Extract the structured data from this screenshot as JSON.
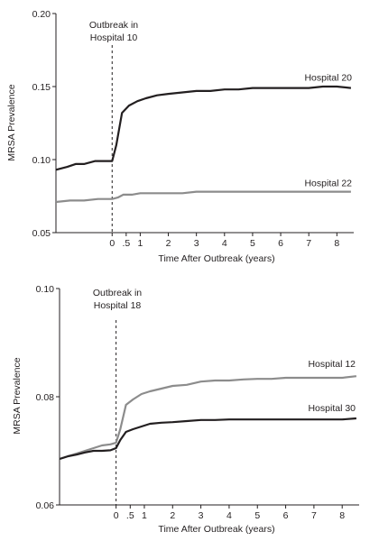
{
  "chart_data": [
    {
      "type": "line",
      "ylabel": "MRSA Prevalence",
      "xlabel": "Time After Outbreak (years)",
      "ylim": [
        0.05,
        0.2
      ],
      "yticks": [
        "0.05",
        "0.10",
        "0.15",
        "0.20"
      ],
      "xlim": [
        -2.0,
        8.6
      ],
      "xticks": [
        {
          "value": 0,
          "label": "0"
        },
        {
          "value": 0.5,
          "label": ".5"
        },
        {
          "value": 1,
          "label": "1"
        },
        {
          "value": 2,
          "label": "2"
        },
        {
          "value": 3,
          "label": "3"
        },
        {
          "value": 4,
          "label": "4"
        },
        {
          "value": 5,
          "label": "5"
        },
        {
          "value": 6,
          "label": "6"
        },
        {
          "value": 7,
          "label": "7"
        },
        {
          "value": 8,
          "label": "8"
        }
      ],
      "grid": false,
      "annotation": {
        "line1": "Outbreak in",
        "line2": "Hospital 10",
        "x": 0
      },
      "series": [
        {
          "name": "Hospital 20",
          "color": "#231f20",
          "x": [
            -2.0,
            -1.6,
            -1.3,
            -1.0,
            -0.6,
            -0.3,
            0.0,
            0.15,
            0.35,
            0.6,
            0.9,
            1.2,
            1.6,
            2.0,
            2.5,
            3.0,
            3.5,
            4.0,
            4.5,
            5.0,
            5.5,
            6.0,
            6.5,
            7.0,
            7.5,
            8.0,
            8.5
          ],
          "values": [
            0.093,
            0.095,
            0.097,
            0.097,
            0.099,
            0.099,
            0.099,
            0.11,
            0.132,
            0.137,
            0.14,
            0.142,
            0.144,
            0.145,
            0.146,
            0.147,
            0.147,
            0.148,
            0.148,
            0.149,
            0.149,
            0.149,
            0.149,
            0.149,
            0.15,
            0.15,
            0.149
          ]
        },
        {
          "name": "Hospital 22",
          "color": "#8c8c8c",
          "x": [
            -2.0,
            -1.5,
            -1.0,
            -0.5,
            0.0,
            0.2,
            0.4,
            0.7,
            1.0,
            1.5,
            2.0,
            2.5,
            3.0,
            3.5,
            4.0,
            4.5,
            5.0,
            5.5,
            6.0,
            6.5,
            7.0,
            7.5,
            8.0,
            8.5
          ],
          "values": [
            0.071,
            0.072,
            0.072,
            0.073,
            0.073,
            0.074,
            0.076,
            0.076,
            0.077,
            0.077,
            0.077,
            0.077,
            0.078,
            0.078,
            0.078,
            0.078,
            0.078,
            0.078,
            0.078,
            0.078,
            0.078,
            0.078,
            0.078,
            0.078
          ]
        }
      ]
    },
    {
      "type": "line",
      "ylabel": "MRSA Prevalence",
      "xlabel": "Time After Outbreak (years)",
      "ylim": [
        0.06,
        0.1
      ],
      "yticks": [
        "0.06",
        "0.08",
        "0.10"
      ],
      "xlim": [
        -2.0,
        8.6
      ],
      "xticks": [
        {
          "value": 0,
          "label": "0"
        },
        {
          "value": 0.5,
          "label": ".5"
        },
        {
          "value": 1,
          "label": "1"
        },
        {
          "value": 2,
          "label": "2"
        },
        {
          "value": 3,
          "label": "3"
        },
        {
          "value": 4,
          "label": "4"
        },
        {
          "value": 5,
          "label": "5"
        },
        {
          "value": 6,
          "label": "6"
        },
        {
          "value": 7,
          "label": "7"
        },
        {
          "value": 8,
          "label": "8"
        }
      ],
      "grid": false,
      "annotation": {
        "line1": "Outbreak in",
        "line2": "Hospital 18",
        "x": 0
      },
      "series": [
        {
          "name": "Hospital 12",
          "color": "#8c8c8c",
          "x": [
            -2.0,
            -1.7,
            -1.4,
            -1.1,
            -0.8,
            -0.5,
            -0.2,
            0.0,
            0.15,
            0.35,
            0.6,
            0.9,
            1.2,
            1.6,
            2.0,
            2.5,
            3.0,
            3.5,
            4.0,
            4.5,
            5.0,
            5.5,
            6.0,
            6.5,
            7.0,
            7.5,
            8.0,
            8.5
          ],
          "values": [
            0.0685,
            0.069,
            0.0695,
            0.07,
            0.0705,
            0.071,
            0.0712,
            0.0715,
            0.074,
            0.0785,
            0.0795,
            0.0805,
            0.081,
            0.0815,
            0.082,
            0.0822,
            0.0828,
            0.083,
            0.083,
            0.0832,
            0.0833,
            0.0833,
            0.0835,
            0.0835,
            0.0835,
            0.0835,
            0.0835,
            0.0838
          ]
        },
        {
          "name": "Hospital 30",
          "color": "#231f20",
          "x": [
            -2.0,
            -1.7,
            -1.4,
            -1.1,
            -0.8,
            -0.5,
            -0.2,
            0.0,
            0.15,
            0.35,
            0.6,
            0.9,
            1.2,
            1.6,
            2.0,
            2.5,
            3.0,
            3.5,
            4.0,
            4.5,
            5.0,
            5.5,
            6.0,
            6.5,
            7.0,
            7.5,
            8.0,
            8.5
          ],
          "values": [
            0.0685,
            0.069,
            0.0693,
            0.0697,
            0.07,
            0.07,
            0.0701,
            0.0705,
            0.072,
            0.0735,
            0.074,
            0.0745,
            0.075,
            0.0752,
            0.0753,
            0.0755,
            0.0757,
            0.0757,
            0.0758,
            0.0758,
            0.0758,
            0.0758,
            0.0758,
            0.0758,
            0.0758,
            0.0758,
            0.0758,
            0.076
          ]
        }
      ]
    }
  ]
}
